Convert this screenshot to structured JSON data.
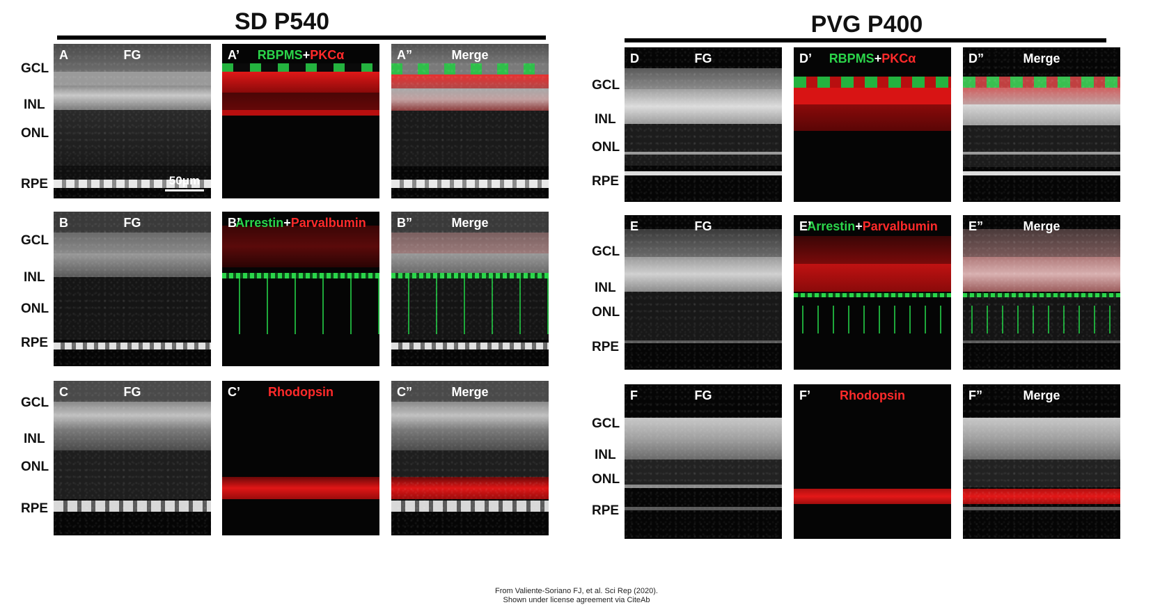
{
  "groups": {
    "left": {
      "title": "SD P540"
    },
    "right": {
      "title": "PVG P400"
    }
  },
  "layer_labels": [
    "GCL",
    "INL",
    "ONL",
    "RPE"
  ],
  "rows": {
    "A": {
      "letters": [
        "A",
        "A’",
        "A”"
      ],
      "fg": "FG",
      "marker_green": "RBPMS",
      "plus": "+",
      "marker_red": "PKCα",
      "merge": "Merge"
    },
    "B": {
      "letters": [
        "B",
        "B’",
        "B”"
      ],
      "fg": "FG",
      "marker_green": "Arrestin",
      "plus": "+",
      "marker_red": "Parvalbumin",
      "merge": "Merge"
    },
    "C": {
      "letters": [
        "C",
        "C’",
        "C”"
      ],
      "fg": "FG",
      "marker_red": "Rhodopsin",
      "merge": "Merge"
    },
    "D": {
      "letters": [
        "D",
        "D’",
        "D”"
      ],
      "fg": "FG",
      "marker_green": "RBPMS",
      "plus": "+",
      "marker_red": "PKCα",
      "merge": "Merge"
    },
    "E": {
      "letters": [
        "E",
        "E’",
        "E”"
      ],
      "fg": "FG",
      "marker_green": "Arrestin",
      "plus": "+",
      "marker_red": "Parvalbumin",
      "merge": "Merge"
    },
    "F": {
      "letters": [
        "F",
        "F’",
        "F”"
      ],
      "fg": "FG",
      "marker_red": "Rhodopsin",
      "merge": "Merge"
    }
  },
  "scale_bar": "50μm",
  "citation": {
    "line1": "From Valiente-Soriano FJ, et al. Sci Rep (2020).",
    "line2": "Shown under license agreement via CiteAb"
  },
  "colors": {
    "green": "#2bd44a",
    "red": "#ff2a2a",
    "background": "#050505"
  }
}
